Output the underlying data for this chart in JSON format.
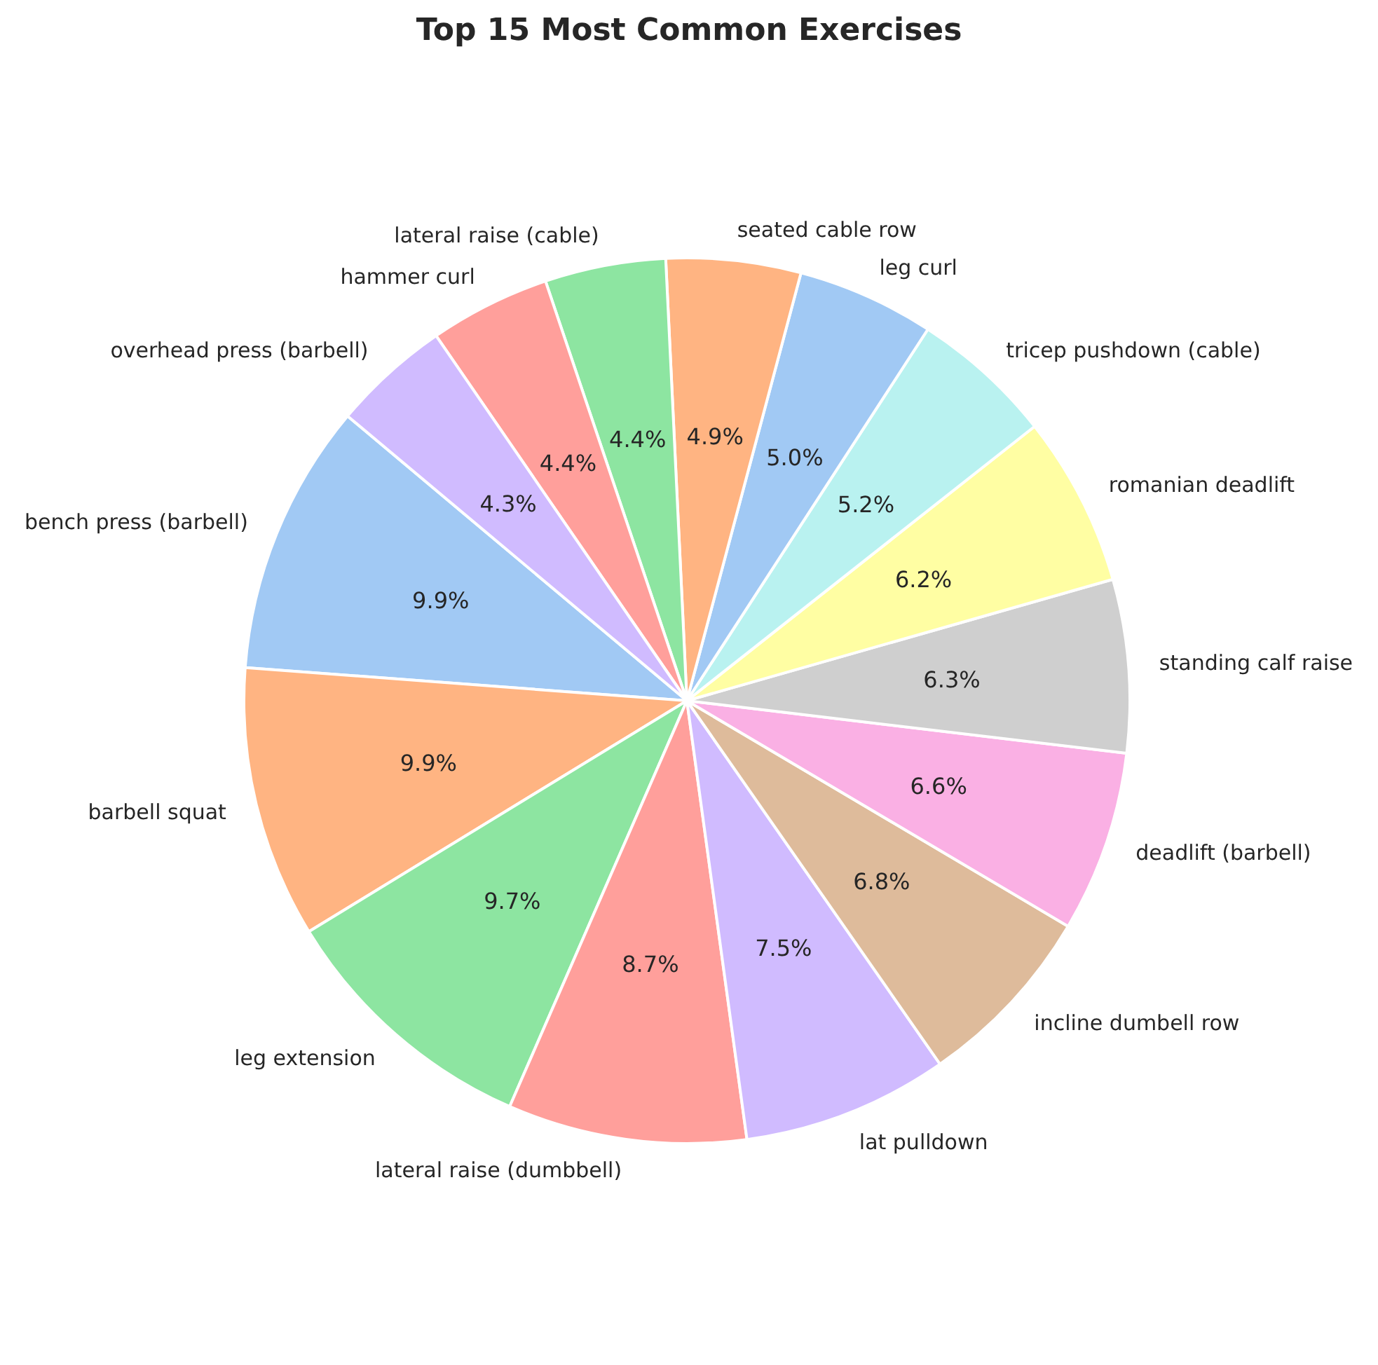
{
  "chart_data": {
    "type": "pie",
    "title": "Top 15 Most Common Exercises",
    "categories": [
      "bench press (barbell)",
      "barbell squat",
      "leg extension",
      "lateral raise (dumbbell)",
      "lat pulldown",
      "incline dumbell row",
      "deadlift (barbell)",
      "standing calf raise",
      "romanian deadlift",
      "tricep pushdown (cable)",
      "leg curl",
      "seated cable row",
      "lateral raise (cable)",
      "hammer curl",
      "overhead press (barbell)"
    ],
    "values": [
      9.9,
      9.9,
      9.7,
      8.7,
      7.5,
      6.8,
      6.6,
      6.3,
      6.2,
      5.2,
      5.0,
      4.9,
      4.4,
      4.4,
      4.3
    ],
    "value_labels": [
      "9.9%",
      "9.9%",
      "9.7%",
      "8.7%",
      "7.5%",
      "6.8%",
      "6.6%",
      "6.3%",
      "6.2%",
      "5.2%",
      "5.0%",
      "4.9%",
      "4.4%",
      "4.4%",
      "4.3%"
    ],
    "colors": [
      "#a1c9f4",
      "#ffb482",
      "#8de5a1",
      "#ff9f9b",
      "#d0bbff",
      "#debb9b",
      "#fab0e4",
      "#cfcfcf",
      "#fffea3",
      "#b9f2f0",
      "#a1c9f4",
      "#ffb482",
      "#8de5a1",
      "#ff9f9b",
      "#d0bbff"
    ],
    "legend": false
  }
}
